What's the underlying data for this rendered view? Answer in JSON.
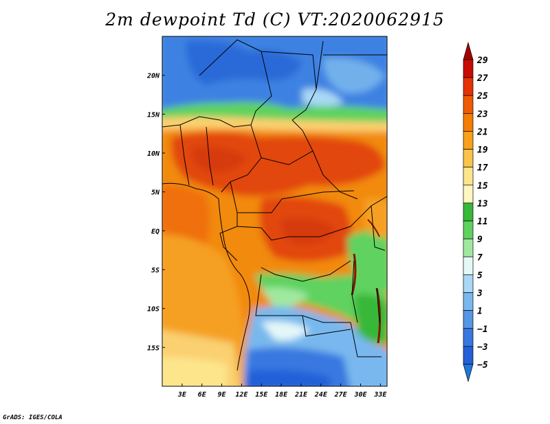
{
  "title": "2m dewpoint Td (C) VT:2020062915",
  "credit": "GrADS: IGES/COLA",
  "map": {
    "lon_range": [
      0,
      34
    ],
    "lat_range": [
      -20,
      25
    ],
    "lon_ticks": [
      {
        "value": 3,
        "label": "3E"
      },
      {
        "value": 6,
        "label": "6E"
      },
      {
        "value": 9,
        "label": "9E"
      },
      {
        "value": 12,
        "label": "12E"
      },
      {
        "value": 15,
        "label": "15E"
      },
      {
        "value": 18,
        "label": "18E"
      },
      {
        "value": 21,
        "label": "21E"
      },
      {
        "value": 24,
        "label": "24E"
      },
      {
        "value": 27,
        "label": "27E"
      },
      {
        "value": 30,
        "label": "30E"
      },
      {
        "value": 33,
        "label": "33E"
      }
    ],
    "lat_ticks": [
      {
        "value": 20,
        "label": "20N"
      },
      {
        "value": 15,
        "label": "15N"
      },
      {
        "value": 10,
        "label": "10N"
      },
      {
        "value": 5,
        "label": "5N"
      },
      {
        "value": 0,
        "label": "EQ"
      },
      {
        "value": -5,
        "label": "5S"
      },
      {
        "value": -10,
        "label": "10S"
      },
      {
        "value": -15,
        "label": "15S"
      }
    ]
  },
  "colorbar": {
    "levels": [
      29,
      27,
      25,
      23,
      21,
      19,
      17,
      15,
      13,
      11,
      9,
      7,
      5,
      3,
      1,
      -1,
      -3,
      -5
    ],
    "labels": [
      "29",
      "27",
      "25",
      "23",
      "21",
      "19",
      "17",
      "15",
      "13",
      "11",
      "9",
      "7",
      "5",
      "3",
      "1",
      "−1",
      "−3",
      "−5"
    ],
    "colors": [
      "#a50000",
      "#c80a00",
      "#e63200",
      "#f05a00",
      "#f57d00",
      "#f8a018",
      "#fac34a",
      "#fde58c",
      "#fff7c0",
      "#38b838",
      "#5ed25e",
      "#a0e8a0",
      "#e4f8f8",
      "#a8d8f5",
      "#78b8ee",
      "#5596e6",
      "#3778e0",
      "#2360d8",
      "#1e78dc"
    ]
  }
}
